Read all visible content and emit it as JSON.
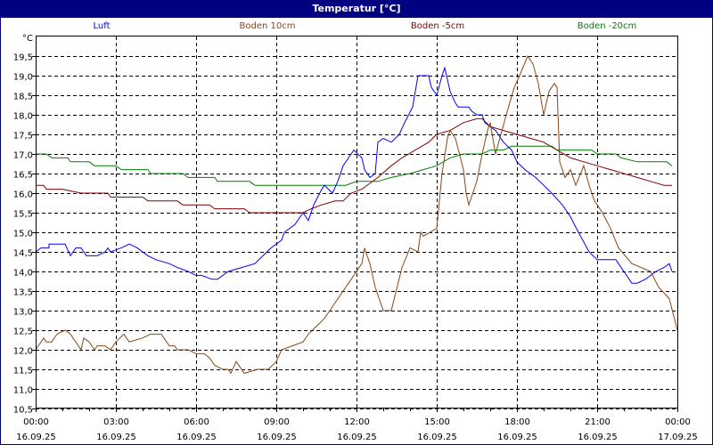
{
  "window": {
    "title": "Temperatur [°C]"
  },
  "chart_data": {
    "type": "line",
    "title": "Temperatur [°C]",
    "ylabel": "°C",
    "xlabel": "",
    "ylim": [
      10.5,
      20.0
    ],
    "yticks": [
      "10,5",
      "11,0",
      "11,5",
      "12,0",
      "12,5",
      "13,0",
      "13,5",
      "14,0",
      "14,5",
      "15,0",
      "15,5",
      "16,0",
      "16,5",
      "17,0",
      "17,5",
      "18,0",
      "18,5",
      "19,0",
      "19,5"
    ],
    "xticks": [
      {
        "time": "00:00",
        "date": "16.09.25"
      },
      {
        "time": "03:00",
        "date": "16.09.25"
      },
      {
        "time": "06:00",
        "date": "16.09.25"
      },
      {
        "time": "09:00",
        "date": "16.09.25"
      },
      {
        "time": "12:00",
        "date": "16.09.25"
      },
      {
        "time": "15:00",
        "date": "16.09.25"
      },
      {
        "time": "18:00",
        "date": "16.09.25"
      },
      {
        "time": "21:00",
        "date": "16.09.25"
      },
      {
        "time": "00:00",
        "date": "17.09.25"
      }
    ],
    "xrange_hours": [
      0,
      24
    ],
    "grid": true,
    "legend_position": "top",
    "series": [
      {
        "name": "Luft",
        "color": "#0000ff",
        "points": [
          [
            0.0,
            14.5
          ],
          [
            0.2,
            14.6
          ],
          [
            0.5,
            14.6
          ],
          [
            0.5,
            14.7
          ],
          [
            0.8,
            14.7
          ],
          [
            1.1,
            14.7
          ],
          [
            1.3,
            14.4
          ],
          [
            1.5,
            14.6
          ],
          [
            1.7,
            14.6
          ],
          [
            1.9,
            14.4
          ],
          [
            2.3,
            14.4
          ],
          [
            2.6,
            14.5
          ],
          [
            2.7,
            14.6
          ],
          [
            2.8,
            14.5
          ],
          [
            3.2,
            14.6
          ],
          [
            3.5,
            14.7
          ],
          [
            3.8,
            14.6
          ],
          [
            4.2,
            14.4
          ],
          [
            4.5,
            14.3
          ],
          [
            5.0,
            14.2
          ],
          [
            5.3,
            14.1
          ],
          [
            5.7,
            14.0
          ],
          [
            6.0,
            13.9
          ],
          [
            6.2,
            13.9
          ],
          [
            6.6,
            13.8
          ],
          [
            6.8,
            13.8
          ],
          [
            7.2,
            14.0
          ],
          [
            7.7,
            14.1
          ],
          [
            8.2,
            14.2
          ],
          [
            8.5,
            14.4
          ],
          [
            8.8,
            14.6
          ],
          [
            9.2,
            14.8
          ],
          [
            9.3,
            15.0
          ],
          [
            9.7,
            15.2
          ],
          [
            10.0,
            15.5
          ],
          [
            10.2,
            15.3
          ],
          [
            10.4,
            15.7
          ],
          [
            10.7,
            16.1
          ],
          [
            10.8,
            16.2
          ],
          [
            11.1,
            16.0
          ],
          [
            11.3,
            16.3
          ],
          [
            11.5,
            16.7
          ],
          [
            11.7,
            16.9
          ],
          [
            11.9,
            17.1
          ],
          [
            12.2,
            16.9
          ],
          [
            12.3,
            16.6
          ],
          [
            12.5,
            16.4
          ],
          [
            12.7,
            16.5
          ],
          [
            12.8,
            17.3
          ],
          [
            13.0,
            17.4
          ],
          [
            13.3,
            17.3
          ],
          [
            13.6,
            17.5
          ],
          [
            13.8,
            17.8
          ],
          [
            14.1,
            18.2
          ],
          [
            14.3,
            19.0
          ],
          [
            14.7,
            19.0
          ],
          [
            14.8,
            18.7
          ],
          [
            15.0,
            18.5
          ],
          [
            15.2,
            19.0
          ],
          [
            15.3,
            19.2
          ],
          [
            15.5,
            18.6
          ],
          [
            15.7,
            18.3
          ],
          [
            15.8,
            18.2
          ],
          [
            16.0,
            18.2
          ],
          [
            16.2,
            18.2
          ],
          [
            16.3,
            18.1
          ],
          [
            16.5,
            18.0
          ],
          [
            16.7,
            18.0
          ],
          [
            16.8,
            17.8
          ],
          [
            17.2,
            17.6
          ],
          [
            17.5,
            17.3
          ],
          [
            17.8,
            17.1
          ],
          [
            18.0,
            16.8
          ],
          [
            18.3,
            16.6
          ],
          [
            18.7,
            16.4
          ],
          [
            19.0,
            16.2
          ],
          [
            19.3,
            16.0
          ],
          [
            19.7,
            15.7
          ],
          [
            20.0,
            15.4
          ],
          [
            20.3,
            15.0
          ],
          [
            20.7,
            14.5
          ],
          [
            21.0,
            14.3
          ],
          [
            21.7,
            14.3
          ],
          [
            22.0,
            14.0
          ],
          [
            22.3,
            13.7
          ],
          [
            22.5,
            13.7
          ],
          [
            22.8,
            13.8
          ],
          [
            23.2,
            14.0
          ],
          [
            23.5,
            14.1
          ],
          [
            23.7,
            14.2
          ],
          [
            23.8,
            14.0
          ]
        ]
      },
      {
        "name": "Boden 10cm",
        "color": "#8b4513",
        "points": [
          [
            0.0,
            12.0
          ],
          [
            0.3,
            12.3
          ],
          [
            0.4,
            12.2
          ],
          [
            0.6,
            12.2
          ],
          [
            0.8,
            12.4
          ],
          [
            1.1,
            12.5
          ],
          [
            1.3,
            12.4
          ],
          [
            1.5,
            12.2
          ],
          [
            1.7,
            12.0
          ],
          [
            1.8,
            12.3
          ],
          [
            2.0,
            12.2
          ],
          [
            2.2,
            12.0
          ],
          [
            2.3,
            12.1
          ],
          [
            2.6,
            12.1
          ],
          [
            2.8,
            12.0
          ],
          [
            3.0,
            12.2
          ],
          [
            3.3,
            12.4
          ],
          [
            3.5,
            12.2
          ],
          [
            4.0,
            12.3
          ],
          [
            4.3,
            12.4
          ],
          [
            4.7,
            12.4
          ],
          [
            5.0,
            12.1
          ],
          [
            5.2,
            12.1
          ],
          [
            5.3,
            12.0
          ],
          [
            5.5,
            12.0
          ],
          [
            5.7,
            12.0
          ],
          [
            6.0,
            11.9
          ],
          [
            6.3,
            11.9
          ],
          [
            6.5,
            11.8
          ],
          [
            6.7,
            11.6
          ],
          [
            7.0,
            11.5
          ],
          [
            7.2,
            11.5
          ],
          [
            7.3,
            11.4
          ],
          [
            7.5,
            11.7
          ],
          [
            7.8,
            11.4
          ],
          [
            8.3,
            11.5
          ],
          [
            8.7,
            11.5
          ],
          [
            9.0,
            11.7
          ],
          [
            9.2,
            12.0
          ],
          [
            9.6,
            12.1
          ],
          [
            10.0,
            12.2
          ],
          [
            10.2,
            12.4
          ],
          [
            10.5,
            12.6
          ],
          [
            10.8,
            12.8
          ],
          [
            11.0,
            13.0
          ],
          [
            11.3,
            13.3
          ],
          [
            11.5,
            13.5
          ],
          [
            11.8,
            13.8
          ],
          [
            12.0,
            14.0
          ],
          [
            12.2,
            14.2
          ],
          [
            12.3,
            14.6
          ],
          [
            12.5,
            14.2
          ],
          [
            12.7,
            13.6
          ],
          [
            13.0,
            13.0
          ],
          [
            13.3,
            13.0
          ],
          [
            13.7,
            14.1
          ],
          [
            14.0,
            14.6
          ],
          [
            14.3,
            14.5
          ],
          [
            14.4,
            15.0
          ],
          [
            14.5,
            14.9
          ],
          [
            15.0,
            15.1
          ],
          [
            15.2,
            16.5
          ],
          [
            15.4,
            17.4
          ],
          [
            15.5,
            17.6
          ],
          [
            15.7,
            17.4
          ],
          [
            16.0,
            16.6
          ],
          [
            16.1,
            16.0
          ],
          [
            16.2,
            15.7
          ],
          [
            16.5,
            16.3
          ],
          [
            16.7,
            17.0
          ],
          [
            16.9,
            17.6
          ],
          [
            17.0,
            17.8
          ],
          [
            17.2,
            17.0
          ],
          [
            17.4,
            17.5
          ],
          [
            17.6,
            18.0
          ],
          [
            17.9,
            18.7
          ],
          [
            18.1,
            19.0
          ],
          [
            18.4,
            19.5
          ],
          [
            18.6,
            19.3
          ],
          [
            18.8,
            18.8
          ],
          [
            19.0,
            18.0
          ],
          [
            19.2,
            18.6
          ],
          [
            19.4,
            18.8
          ],
          [
            19.5,
            18.7
          ],
          [
            19.6,
            16.8
          ],
          [
            19.8,
            16.4
          ],
          [
            20.0,
            16.6
          ],
          [
            20.2,
            16.2
          ],
          [
            20.5,
            16.7
          ],
          [
            20.7,
            16.2
          ],
          [
            20.9,
            15.8
          ],
          [
            21.2,
            15.5
          ],
          [
            21.5,
            15.1
          ],
          [
            21.8,
            14.6
          ],
          [
            22.3,
            14.2
          ],
          [
            23.0,
            14.0
          ],
          [
            23.3,
            13.6
          ],
          [
            23.7,
            13.3
          ],
          [
            24.0,
            12.5
          ]
        ]
      },
      {
        "name": "Boden -5cm",
        "color": "#800000",
        "points": [
          [
            0.0,
            16.2
          ],
          [
            0.3,
            16.2
          ],
          [
            0.4,
            16.1
          ],
          [
            1.0,
            16.1
          ],
          [
            1.7,
            16.0
          ],
          [
            2.7,
            16.0
          ],
          [
            2.8,
            15.9
          ],
          [
            4.0,
            15.9
          ],
          [
            4.2,
            15.8
          ],
          [
            5.3,
            15.8
          ],
          [
            5.5,
            15.7
          ],
          [
            6.5,
            15.7
          ],
          [
            6.7,
            15.6
          ],
          [
            7.8,
            15.6
          ],
          [
            8.0,
            15.5
          ],
          [
            9.0,
            15.5
          ],
          [
            10.0,
            15.5
          ],
          [
            10.3,
            15.6
          ],
          [
            10.7,
            15.7
          ],
          [
            11.2,
            15.8
          ],
          [
            11.5,
            15.8
          ],
          [
            11.8,
            16.0
          ],
          [
            12.2,
            16.1
          ],
          [
            12.8,
            16.4
          ],
          [
            13.3,
            16.7
          ],
          [
            13.7,
            16.9
          ],
          [
            14.2,
            17.1
          ],
          [
            14.7,
            17.3
          ],
          [
            15.0,
            17.5
          ],
          [
            15.5,
            17.6
          ],
          [
            16.0,
            17.8
          ],
          [
            16.5,
            17.9
          ],
          [
            16.7,
            17.9
          ],
          [
            17.0,
            17.7
          ],
          [
            17.5,
            17.6
          ],
          [
            18.0,
            17.5
          ],
          [
            18.5,
            17.4
          ],
          [
            19.0,
            17.3
          ],
          [
            19.5,
            17.1
          ],
          [
            20.0,
            16.9
          ],
          [
            20.5,
            16.8
          ],
          [
            21.0,
            16.7
          ],
          [
            21.5,
            16.6
          ],
          [
            22.0,
            16.5
          ],
          [
            22.5,
            16.4
          ],
          [
            23.0,
            16.3
          ],
          [
            23.5,
            16.2
          ],
          [
            23.8,
            16.2
          ]
        ]
      },
      {
        "name": "Boden -20cm",
        "color": "#008000",
        "points": [
          [
            0.0,
            17.0
          ],
          [
            0.4,
            17.0
          ],
          [
            0.6,
            16.9
          ],
          [
            1.2,
            16.9
          ],
          [
            1.3,
            16.8
          ],
          [
            2.0,
            16.8
          ],
          [
            2.2,
            16.7
          ],
          [
            3.0,
            16.7
          ],
          [
            3.2,
            16.6
          ],
          [
            4.2,
            16.6
          ],
          [
            4.3,
            16.5
          ],
          [
            5.5,
            16.5
          ],
          [
            5.7,
            16.4
          ],
          [
            6.7,
            16.4
          ],
          [
            6.8,
            16.3
          ],
          [
            8.0,
            16.3
          ],
          [
            8.2,
            16.2
          ],
          [
            9.0,
            16.2
          ],
          [
            10.0,
            16.2
          ],
          [
            11.0,
            16.2
          ],
          [
            11.6,
            16.2
          ],
          [
            12.0,
            16.3
          ],
          [
            12.8,
            16.3
          ],
          [
            13.3,
            16.4
          ],
          [
            14.0,
            16.5
          ],
          [
            14.5,
            16.6
          ],
          [
            15.0,
            16.7
          ],
          [
            15.5,
            16.9
          ],
          [
            16.0,
            17.0
          ],
          [
            16.7,
            17.0
          ],
          [
            17.0,
            17.1
          ],
          [
            17.5,
            17.1
          ],
          [
            17.8,
            17.2
          ],
          [
            19.3,
            17.2
          ],
          [
            19.5,
            17.1
          ],
          [
            20.8,
            17.1
          ],
          [
            21.0,
            17.0
          ],
          [
            21.7,
            17.0
          ],
          [
            21.9,
            16.9
          ],
          [
            22.5,
            16.8
          ],
          [
            23.0,
            16.8
          ],
          [
            23.6,
            16.8
          ],
          [
            23.8,
            16.7
          ]
        ]
      }
    ]
  }
}
